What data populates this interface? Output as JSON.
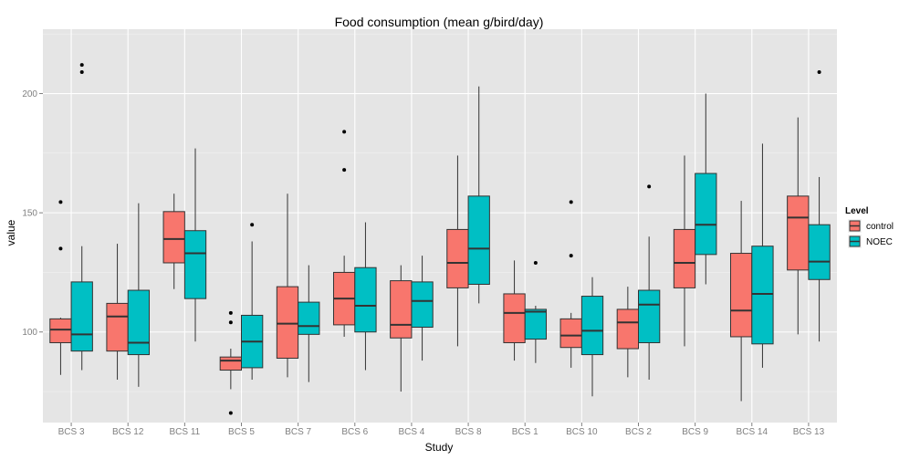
{
  "chart_data": {
    "type": "boxplot",
    "title": "Food consumption (mean g/bird/day)",
    "xlabel": "Study",
    "ylabel": "value",
    "ylim": [
      62,
      227
    ],
    "yticks": [
      100,
      150,
      200
    ],
    "grid": true,
    "legend": {
      "title": "Level",
      "placement": "right"
    },
    "categories": [
      "BCS 3",
      "BCS 12",
      "BCS 11",
      "BCS 5",
      "BCS 7",
      "BCS 6",
      "BCS 4",
      "BCS 8",
      "BCS 1",
      "BCS 10",
      "BCS 2",
      "BCS 9",
      "BCS 14",
      "BCS 13"
    ],
    "series": [
      {
        "name": "control",
        "color": "#F8766D",
        "boxes": [
          {
            "min": 82,
            "q1": 95.5,
            "median": 101,
            "q3": 105.5,
            "max": 106,
            "outliers": [
              135,
              154.5
            ]
          },
          {
            "min": 80,
            "q1": 92,
            "median": 106.5,
            "q3": 112,
            "max": 137,
            "outliers": []
          },
          {
            "min": 118,
            "q1": 129,
            "median": 139,
            "q3": 150.5,
            "max": 158,
            "outliers": []
          },
          {
            "min": 76,
            "q1": 84,
            "median": 88,
            "q3": 89.5,
            "max": 93,
            "outliers": [
              104,
              108,
              66
            ]
          },
          {
            "min": 81,
            "q1": 89,
            "median": 103.5,
            "q3": 119,
            "max": 158,
            "outliers": []
          },
          {
            "min": 98,
            "q1": 103,
            "median": 114,
            "q3": 125,
            "max": 132,
            "outliers": [
              168,
              184
            ]
          },
          {
            "min": 75,
            "q1": 97.5,
            "median": 103,
            "q3": 121.5,
            "max": 128,
            "outliers": []
          },
          {
            "min": 94,
            "q1": 118.5,
            "median": 129,
            "q3": 143,
            "max": 174,
            "outliers": []
          },
          {
            "min": 88,
            "q1": 95.5,
            "median": 108,
            "q3": 116,
            "max": 130,
            "outliers": []
          },
          {
            "min": 85,
            "q1": 93.5,
            "median": 98.5,
            "q3": 105.5,
            "max": 108,
            "outliers": [
              132,
              154.5
            ]
          },
          {
            "min": 81,
            "q1": 93,
            "median": 104,
            "q3": 109.5,
            "max": 119,
            "outliers": []
          },
          {
            "min": 94,
            "q1": 118.5,
            "median": 129,
            "q3": 143,
            "max": 174,
            "outliers": []
          },
          {
            "min": 71,
            "q1": 98,
            "median": 109,
            "q3": 133,
            "max": 155,
            "outliers": []
          },
          {
            "min": 99,
            "q1": 126,
            "median": 148,
            "q3": 157,
            "max": 190,
            "outliers": []
          }
        ]
      },
      {
        "name": "NOEC",
        "color": "#00BFC4",
        "boxes": [
          {
            "min": 84,
            "q1": 92,
            "median": 99,
            "q3": 121,
            "max": 136,
            "outliers": [
              209,
              212
            ]
          },
          {
            "min": 77,
            "q1": 90.5,
            "median": 95.5,
            "q3": 117.5,
            "max": 154,
            "outliers": []
          },
          {
            "min": 96,
            "q1": 114,
            "median": 133,
            "q3": 142.5,
            "max": 177,
            "outliers": []
          },
          {
            "min": 80,
            "q1": 85,
            "median": 96,
            "q3": 107,
            "max": 138,
            "outliers": [
              145
            ]
          },
          {
            "min": 79,
            "q1": 99,
            "median": 102.5,
            "q3": 112.5,
            "max": 128,
            "outliers": []
          },
          {
            "min": 84,
            "q1": 100,
            "median": 111,
            "q3": 127,
            "max": 146,
            "outliers": []
          },
          {
            "min": 88,
            "q1": 102,
            "median": 113,
            "q3": 121,
            "max": 132,
            "outliers": []
          },
          {
            "min": 112,
            "q1": 120,
            "median": 135,
            "q3": 157,
            "max": 203,
            "outliers": []
          },
          {
            "min": 87,
            "q1": 97,
            "median": 108.5,
            "q3": 109.5,
            "max": 111,
            "outliers": [
              129
            ]
          },
          {
            "min": 73,
            "q1": 90.5,
            "median": 100.5,
            "q3": 115,
            "max": 123,
            "outliers": []
          },
          {
            "min": 80,
            "q1": 95.5,
            "median": 111.5,
            "q3": 117.5,
            "max": 140,
            "outliers": [
              161
            ]
          },
          {
            "min": 120,
            "q1": 132.5,
            "median": 145,
            "q3": 166.5,
            "max": 200,
            "outliers": []
          },
          {
            "min": 85,
            "q1": 95,
            "median": 116,
            "q3": 136,
            "max": 179,
            "outliers": []
          },
          {
            "min": 96,
            "q1": 122,
            "median": 129.5,
            "q3": 145,
            "max": 165,
            "outliers": [
              209
            ]
          }
        ]
      }
    ]
  }
}
